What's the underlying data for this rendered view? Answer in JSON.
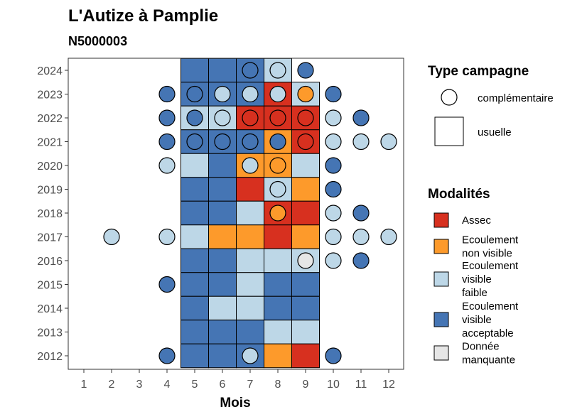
{
  "chart_data": {
    "type": "heatmap",
    "title": "L'Autize à Pamplie",
    "subtitle": "N5000003",
    "xlabel": "Mois",
    "ylabel": "",
    "x_ticks": [
      1,
      2,
      3,
      4,
      5,
      6,
      7,
      8,
      9,
      10,
      11,
      12
    ],
    "y_ticks": [
      2012,
      2013,
      2014,
      2015,
      2016,
      2017,
      2018,
      2019,
      2020,
      2021,
      2022,
      2023,
      2024
    ],
    "xlim": [
      0.5,
      12.5
    ],
    "ylim": [
      2011.5,
      2024.6
    ],
    "grid": false,
    "legend_placement": "right",
    "legends": {
      "campaign": {
        "title": "Type campagne",
        "items": [
          {
            "key": "circle",
            "label": "complémentaire"
          },
          {
            "key": "square",
            "label": "usuelle"
          }
        ]
      },
      "modality": {
        "title": "Modalités",
        "items": [
          {
            "key": "A",
            "label": [
              "Assec"
            ]
          },
          {
            "key": "N",
            "label": [
              "Ecoulement",
              "non visible"
            ]
          },
          {
            "key": "F",
            "label": [
              "Ecoulement",
              "visible",
              "faible"
            ]
          },
          {
            "key": "V",
            "label": [
              "Ecoulement",
              "visible",
              "acceptable"
            ]
          },
          {
            "key": "M",
            "label": [
              "Donnée",
              "manquante"
            ]
          }
        ]
      }
    },
    "colors": {
      "A": "#d7301f",
      "N": "#fd9a2b",
      "F": "#bdd7e7",
      "V": "#4575b4",
      "M": "#e6e6e6"
    },
    "usuelle": [
      {
        "year": 2024,
        "values": [
          "V",
          "V",
          "V",
          "F"
        ]
      },
      {
        "year": 2023,
        "values": [
          "V",
          "V",
          "V",
          "A",
          "F"
        ]
      },
      {
        "year": 2022,
        "values": [
          "F",
          "F",
          "A",
          "A",
          "A"
        ]
      },
      {
        "year": 2021,
        "values": [
          "V",
          "V",
          "V",
          "N",
          "A"
        ]
      },
      {
        "year": 2020,
        "values": [
          "F",
          "V",
          "N",
          "N",
          "F"
        ]
      },
      {
        "year": 2019,
        "values": [
          "V",
          "V",
          "A",
          "F",
          "N"
        ]
      },
      {
        "year": 2018,
        "values": [
          "V",
          "V",
          "F",
          "A",
          "A"
        ]
      },
      {
        "year": 2017,
        "values": [
          "F",
          "N",
          "N",
          "A",
          "N"
        ]
      },
      {
        "year": 2016,
        "values": [
          "V",
          "V",
          "F",
          "F",
          "F"
        ]
      },
      {
        "year": 2015,
        "values": [
          "V",
          "V",
          "F",
          "V",
          "V"
        ]
      },
      {
        "year": 2014,
        "values": [
          "V",
          "F",
          "F",
          "V",
          "V"
        ]
      },
      {
        "year": 2013,
        "values": [
          "V",
          "V",
          "V",
          "F",
          "F"
        ]
      },
      {
        "year": 2012,
        "values": [
          "V",
          "V",
          "V",
          "N",
          "A"
        ]
      }
    ],
    "usuelle_months": [
      5,
      6,
      7,
      8,
      9
    ],
    "complementaire": [
      {
        "year": 2024,
        "month": 7,
        "value": "V"
      },
      {
        "year": 2024,
        "month": 8,
        "value": "F"
      },
      {
        "year": 2024,
        "month": 9,
        "value": "V"
      },
      {
        "year": 2023,
        "month": 4,
        "value": "V"
      },
      {
        "year": 2023,
        "month": 5,
        "value": "V"
      },
      {
        "year": 2023,
        "month": 6,
        "value": "F"
      },
      {
        "year": 2023,
        "month": 7,
        "value": "F"
      },
      {
        "year": 2023,
        "month": 8,
        "value": "F"
      },
      {
        "year": 2023,
        "month": 9,
        "value": "N"
      },
      {
        "year": 2023,
        "month": 10,
        "value": "V"
      },
      {
        "year": 2022,
        "month": 4,
        "value": "V"
      },
      {
        "year": 2022,
        "month": 5,
        "value": "V"
      },
      {
        "year": 2022,
        "month": 6,
        "value": "F"
      },
      {
        "year": 2022,
        "month": 7,
        "value": "A"
      },
      {
        "year": 2022,
        "month": 8,
        "value": "A"
      },
      {
        "year": 2022,
        "month": 9,
        "value": "A"
      },
      {
        "year": 2022,
        "month": 10,
        "value": "F"
      },
      {
        "year": 2022,
        "month": 11,
        "value": "V"
      },
      {
        "year": 2021,
        "month": 4,
        "value": "V"
      },
      {
        "year": 2021,
        "month": 5,
        "value": "V"
      },
      {
        "year": 2021,
        "month": 6,
        "value": "V"
      },
      {
        "year": 2021,
        "month": 7,
        "value": "V"
      },
      {
        "year": 2021,
        "month": 8,
        "value": "V"
      },
      {
        "year": 2021,
        "month": 9,
        "value": "A"
      },
      {
        "year": 2021,
        "month": 10,
        "value": "F"
      },
      {
        "year": 2021,
        "month": 11,
        "value": "F"
      },
      {
        "year": 2021,
        "month": 12,
        "value": "F"
      },
      {
        "year": 2020,
        "month": 4,
        "value": "F"
      },
      {
        "year": 2020,
        "month": 7,
        "value": "F"
      },
      {
        "year": 2020,
        "month": 8,
        "value": "N"
      },
      {
        "year": 2020,
        "month": 10,
        "value": "V"
      },
      {
        "year": 2019,
        "month": 8,
        "value": "F"
      },
      {
        "year": 2019,
        "month": 10,
        "value": "V"
      },
      {
        "year": 2018,
        "month": 8,
        "value": "N"
      },
      {
        "year": 2018,
        "month": 10,
        "value": "F"
      },
      {
        "year": 2018,
        "month": 11,
        "value": "V"
      },
      {
        "year": 2017,
        "month": 2,
        "value": "F"
      },
      {
        "year": 2017,
        "month": 4,
        "value": "F"
      },
      {
        "year": 2017,
        "month": 10,
        "value": "F"
      },
      {
        "year": 2017,
        "month": 11,
        "value": "F"
      },
      {
        "year": 2017,
        "month": 12,
        "value": "F"
      },
      {
        "year": 2016,
        "month": 9,
        "value": "M"
      },
      {
        "year": 2016,
        "month": 10,
        "value": "F"
      },
      {
        "year": 2016,
        "month": 11,
        "value": "V"
      },
      {
        "year": 2015,
        "month": 4,
        "value": "V"
      },
      {
        "year": 2012,
        "month": 4,
        "value": "V"
      },
      {
        "year": 2012,
        "month": 7,
        "value": "F"
      },
      {
        "year": 2012,
        "month": 10,
        "value": "V"
      }
    ]
  }
}
